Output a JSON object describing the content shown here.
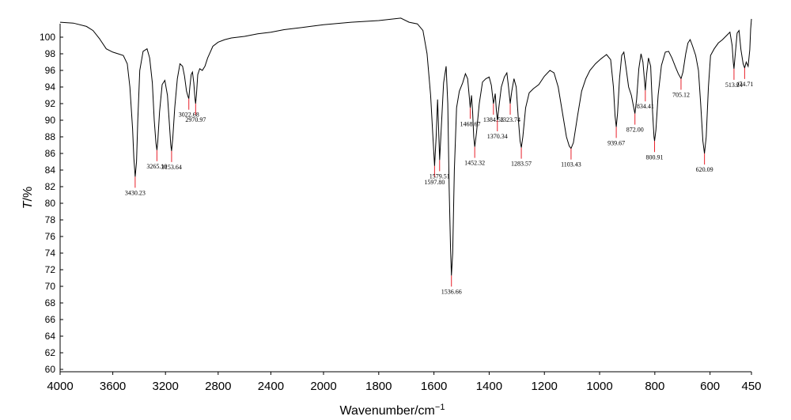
{
  "chart_data": {
    "type": "line",
    "xlabel_main": "Wavenumber",
    "xlabel_unit": "/cm",
    "xlabel_exp": "−1",
    "ylabel_var": "T",
    "ylabel_unit": "/%",
    "xlim": [
      4000,
      450
    ],
    "ylim": [
      60,
      102
    ],
    "x_ticks": [
      4000,
      3600,
      3200,
      2800,
      2400,
      2000,
      1800,
      1600,
      1400,
      1200,
      1000,
      800,
      600,
      450
    ],
    "y_ticks": [
      60,
      62,
      64,
      66,
      68,
      70,
      72,
      74,
      76,
      78,
      80,
      82,
      84,
      86,
      88,
      90,
      92,
      94,
      96,
      98,
      100
    ],
    "peaks": [
      {
        "label": "3430.23",
        "x": 3430.23,
        "y": 83.2
      },
      {
        "label": "3265.10",
        "x": 3265.1,
        "y": 86.4
      },
      {
        "label": "3153.64",
        "x": 3153.64,
        "y": 86.3
      },
      {
        "label": "3022.68",
        "x": 3022.68,
        "y": 92.6
      },
      {
        "label": "2970.97",
        "x": 2970.97,
        "y": 92.0
      },
      {
        "label": "1597.80",
        "x": 1597.8,
        "y": 84.5
      },
      {
        "label": "1579.51",
        "x": 1579.51,
        "y": 85.2
      },
      {
        "label": "1536.66",
        "x": 1536.66,
        "y": 71.3
      },
      {
        "label": "1468.67",
        "x": 1468.67,
        "y": 91.5
      },
      {
        "label": "1452.32",
        "x": 1452.32,
        "y": 86.8
      },
      {
        "label": "1384.53",
        "x": 1384.53,
        "y": 92.0
      },
      {
        "label": "1370.34",
        "x": 1370.34,
        "y": 90.0
      },
      {
        "label": "1323.74",
        "x": 1323.74,
        "y": 92.0
      },
      {
        "label": "1283.57",
        "x": 1283.57,
        "y": 86.7
      },
      {
        "label": "1103.43",
        "x": 1103.43,
        "y": 86.6
      },
      {
        "label": "939.67",
        "x": 939.67,
        "y": 89.2
      },
      {
        "label": "872.00",
        "x": 872.0,
        "y": 90.8
      },
      {
        "label": "834.41",
        "x": 834.41,
        "y": 93.6
      },
      {
        "label": "800.91",
        "x": 800.91,
        "y": 87.5
      },
      {
        "label": "705.12",
        "x": 705.12,
        "y": 95.0
      },
      {
        "label": "620.09",
        "x": 620.09,
        "y": 86.0
      },
      {
        "label": "513.24",
        "x": 513.24,
        "y": 96.2
      },
      {
        "label": "474.71",
        "x": 474.71,
        "y": 96.3
      }
    ],
    "spectrum": [
      [
        4000,
        101.8
      ],
      [
        3900,
        101.7
      ],
      [
        3800,
        101.3
      ],
      [
        3750,
        100.8
      ],
      [
        3700,
        99.8
      ],
      [
        3650,
        98.6
      ],
      [
        3600,
        98.2
      ],
      [
        3560,
        98.0
      ],
      [
        3520,
        97.8
      ],
      [
        3490,
        96.8
      ],
      [
        3470,
        94.0
      ],
      [
        3450,
        89.0
      ],
      [
        3440,
        85.5
      ],
      [
        3430.23,
        83.2
      ],
      [
        3420,
        85.0
      ],
      [
        3410,
        90.0
      ],
      [
        3395,
        96.0
      ],
      [
        3370,
        98.3
      ],
      [
        3340,
        98.6
      ],
      [
        3320,
        97.5
      ],
      [
        3300,
        94.5
      ],
      [
        3285,
        90.0
      ],
      [
        3272,
        87.2
      ],
      [
        3265.1,
        86.4
      ],
      [
        3258,
        87.5
      ],
      [
        3245,
        91.0
      ],
      [
        3225,
        94.3
      ],
      [
        3205,
        94.8
      ],
      [
        3185,
        93.0
      ],
      [
        3170,
        89.5
      ],
      [
        3160,
        87.0
      ],
      [
        3153.64,
        86.3
      ],
      [
        3145,
        87.8
      ],
      [
        3130,
        91.5
      ],
      [
        3110,
        95.0
      ],
      [
        3090,
        96.8
      ],
      [
        3070,
        96.5
      ],
      [
        3055,
        95.3
      ],
      [
        3040,
        93.5
      ],
      [
        3030,
        92.9
      ],
      [
        3022.68,
        92.6
      ],
      [
        3015,
        94.0
      ],
      [
        3005,
        95.5
      ],
      [
        2995,
        95.8
      ],
      [
        2985,
        94.5
      ],
      [
        2976,
        92.6
      ],
      [
        2970.97,
        92.0
      ],
      [
        2965,
        93.0
      ],
      [
        2955,
        95.5
      ],
      [
        2940,
        96.2
      ],
      [
        2920,
        96.0
      ],
      [
        2900,
        96.5
      ],
      [
        2880,
        97.5
      ],
      [
        2860,
        98.2
      ],
      [
        2840,
        98.9
      ],
      [
        2800,
        99.4
      ],
      [
        2750,
        99.7
      ],
      [
        2700,
        99.9
      ],
      [
        2600,
        100.1
      ],
      [
        2500,
        100.4
      ],
      [
        2400,
        100.6
      ],
      [
        2300,
        100.9
      ],
      [
        2200,
        101.1
      ],
      [
        2100,
        101.3
      ],
      [
        2000,
        101.5
      ],
      [
        1900,
        101.8
      ],
      [
        1800,
        102.0
      ],
      [
        1720,
        102.3
      ],
      [
        1690,
        101.8
      ],
      [
        1660,
        101.6
      ],
      [
        1640,
        100.8
      ],
      [
        1625,
        98.0
      ],
      [
        1612,
        93.0
      ],
      [
        1603,
        87.5
      ],
      [
        1597.8,
        84.5
      ],
      [
        1592,
        88.0
      ],
      [
        1587,
        92.5
      ],
      [
        1583,
        89.0
      ],
      [
        1579.51,
        85.2
      ],
      [
        1575,
        88.0
      ],
      [
        1565,
        94.5
      ],
      [
        1556,
        96.5
      ],
      [
        1550,
        92.0
      ],
      [
        1545,
        82.0
      ],
      [
        1540,
        74.5
      ],
      [
        1536.66,
        71.3
      ],
      [
        1532,
        74.0
      ],
      [
        1526,
        84.0
      ],
      [
        1518,
        91.5
      ],
      [
        1508,
        93.5
      ],
      [
        1496,
        94.5
      ],
      [
        1486,
        95.6
      ],
      [
        1478,
        95.0
      ],
      [
        1472,
        92.8
      ],
      [
        1468.67,
        91.5
      ],
      [
        1464,
        93.0
      ],
      [
        1460,
        91.0
      ],
      [
        1456,
        88.0
      ],
      [
        1452.32,
        86.8
      ],
      [
        1446,
        88.5
      ],
      [
        1436,
        92.0
      ],
      [
        1424,
        94.6
      ],
      [
        1412,
        95.0
      ],
      [
        1400,
        95.2
      ],
      [
        1392,
        94.2
      ],
      [
        1384.53,
        92.0
      ],
      [
        1378,
        93.2
      ],
      [
        1374,
        91.2
      ],
      [
        1370.34,
        90.0
      ],
      [
        1365,
        91.5
      ],
      [
        1356,
        94.0
      ],
      [
        1345,
        95.2
      ],
      [
        1336,
        95.7
      ],
      [
        1330,
        94.0
      ],
      [
        1323.74,
        92.0
      ],
      [
        1318,
        93.5
      ],
      [
        1310,
        95.0
      ],
      [
        1302,
        94.0
      ],
      [
        1294,
        90.0
      ],
      [
        1288,
        87.5
      ],
      [
        1283.57,
        86.7
      ],
      [
        1278,
        88.0
      ],
      [
        1268,
        91.5
      ],
      [
        1255,
        93.3
      ],
      [
        1240,
        93.8
      ],
      [
        1220,
        94.3
      ],
      [
        1200,
        95.3
      ],
      [
        1180,
        96.0
      ],
      [
        1165,
        95.7
      ],
      [
        1150,
        94.0
      ],
      [
        1135,
        91.0
      ],
      [
        1120,
        88.0
      ],
      [
        1110,
        86.9
      ],
      [
        1103.43,
        86.6
      ],
      [
        1095,
        87.3
      ],
      [
        1080,
        90.5
      ],
      [
        1065,
        93.5
      ],
      [
        1050,
        95.0
      ],
      [
        1035,
        96.0
      ],
      [
        1015,
        96.8
      ],
      [
        995,
        97.4
      ],
      [
        975,
        97.9
      ],
      [
        960,
        97.3
      ],
      [
        950,
        94.0
      ],
      [
        944,
        90.5
      ],
      [
        939.67,
        89.2
      ],
      [
        935,
        90.8
      ],
      [
        928,
        95.0
      ],
      [
        920,
        97.8
      ],
      [
        912,
        98.2
      ],
      [
        905,
        96.5
      ],
      [
        895,
        94.0
      ],
      [
        885,
        93.0
      ],
      [
        878,
        91.8
      ],
      [
        872.0,
        90.8
      ],
      [
        866,
        92.5
      ],
      [
        858,
        96.2
      ],
      [
        850,
        98.0
      ],
      [
        843,
        97.0
      ],
      [
        838,
        95.0
      ],
      [
        834.41,
        93.6
      ],
      [
        830,
        95.5
      ],
      [
        823,
        97.5
      ],
      [
        815,
        96.5
      ],
      [
        808,
        91.0
      ],
      [
        803,
        88.0
      ],
      [
        800.91,
        87.5
      ],
      [
        796,
        88.8
      ],
      [
        788,
        93.0
      ],
      [
        776,
        96.6
      ],
      [
        762,
        98.2
      ],
      [
        750,
        98.3
      ],
      [
        738,
        97.5
      ],
      [
        725,
        96.4
      ],
      [
        715,
        95.6
      ],
      [
        705.12,
        95.0
      ],
      [
        698,
        95.8
      ],
      [
        688,
        98.0
      ],
      [
        680,
        99.3
      ],
      [
        672,
        99.7
      ],
      [
        664,
        99.0
      ],
      [
        652,
        97.8
      ],
      [
        642,
        96.0
      ],
      [
        634,
        92.0
      ],
      [
        626,
        87.5
      ],
      [
        620.09,
        86.0
      ],
      [
        614,
        88.0
      ],
      [
        606,
        94.0
      ],
      [
        598,
        97.8
      ],
      [
        585,
        98.6
      ],
      [
        570,
        99.3
      ],
      [
        555,
        99.7
      ],
      [
        540,
        100.2
      ],
      [
        528,
        100.6
      ],
      [
        520,
        99.0
      ],
      [
        516,
        97.0
      ],
      [
        513.24,
        96.2
      ],
      [
        510,
        97.5
      ],
      [
        502,
        100.5
      ],
      [
        495,
        100.8
      ],
      [
        488,
        98.5
      ],
      [
        480,
        96.8
      ],
      [
        474.71,
        96.3
      ],
      [
        469,
        97.0
      ],
      [
        462,
        96.5
      ],
      [
        456,
        98.5
      ],
      [
        453,
        101.0
      ],
      [
        450,
        102.2
      ]
    ]
  }
}
